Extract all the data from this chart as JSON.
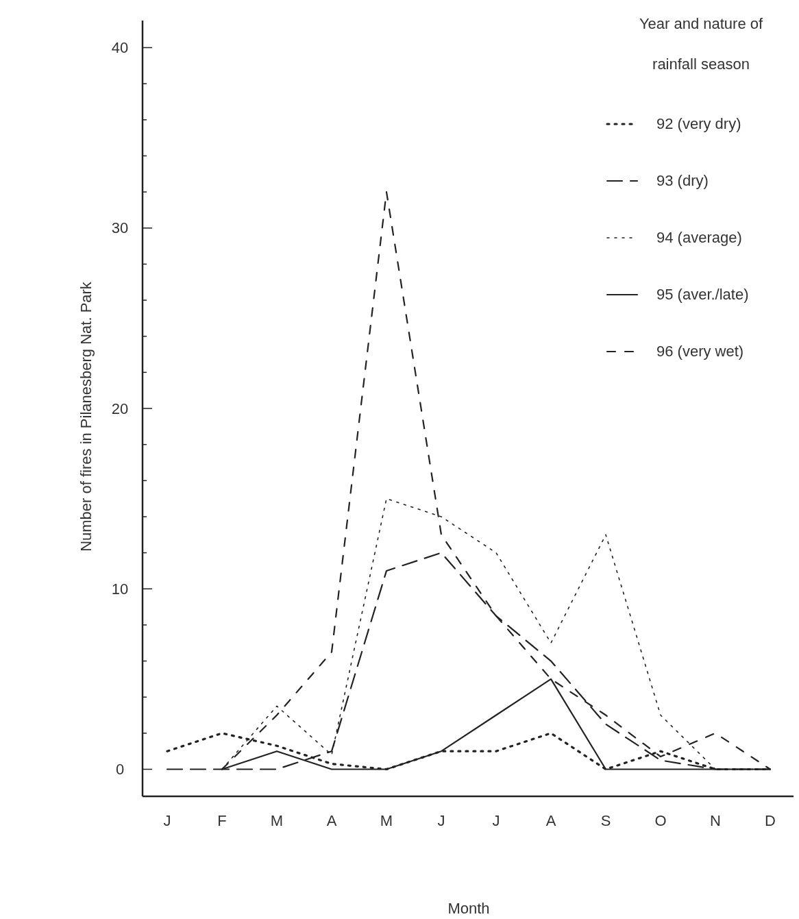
{
  "chart_data": {
    "type": "line",
    "xlabel": "Month",
    "ylabel": "Number of fires in Pilanesberg Nat. Park",
    "legend_title": "Year and nature of rainfall season",
    "legend": "top right",
    "categories": [
      "J",
      "F",
      "M",
      "A",
      "M",
      "J",
      "J",
      "A",
      "S",
      "O",
      "N",
      "D"
    ],
    "ylim": [
      -1.5,
      41.5
    ],
    "yticks": [
      0,
      {
        "value": 2,
        "label": null
      },
      {
        "value": 4,
        "label": null
      },
      {
        "value": 6,
        "label": null
      },
      {
        "value": 8,
        "label": null
      },
      10,
      {
        "value": 12,
        "label": null
      },
      {
        "value": 14,
        "label": null
      },
      {
        "value": 16,
        "label": null
      },
      {
        "value": 18,
        "label": null
      },
      20,
      {
        "value": 22,
        "label": null
      },
      {
        "value": 24,
        "label": null
      },
      {
        "value": 26,
        "label": null
      },
      {
        "value": 28,
        "label": null
      },
      30,
      {
        "value": 32,
        "label": null
      },
      {
        "value": 34,
        "label": null
      },
      {
        "value": 36,
        "label": null
      },
      {
        "value": 38,
        "label": null
      },
      40
    ],
    "series": [
      {
        "name": "92 (very dry)",
        "color": "#222222",
        "line_style": "dotted",
        "values": [
          1,
          2,
          1.3,
          0.3,
          0,
          1,
          1,
          2,
          0,
          1,
          0,
          0
        ]
      },
      {
        "name": "93 (dry)",
        "color": "#222222",
        "line_style": "dashed",
        "values": [
          0,
          0,
          0,
          1,
          11,
          12,
          8.5,
          6,
          2.5,
          0.5,
          0,
          0
        ]
      },
      {
        "name": "94 (average)",
        "color": "#222222",
        "line_style": "dotted",
        "values": [
          null,
          0,
          3.5,
          0.8,
          15,
          14,
          12,
          7,
          13,
          3,
          0,
          0
        ]
      },
      {
        "name": "95 (aver./late)",
        "color": "#222222",
        "line_style": "solid",
        "values": [
          null,
          0,
          1,
          0,
          0,
          1,
          3,
          5,
          0,
          0,
          0,
          0
        ]
      },
      {
        "name": "96 (very wet)",
        "color": "#222222",
        "line_style": "dashed",
        "values": [
          null,
          0,
          3,
          6.5,
          32,
          13,
          8.5,
          5,
          3,
          0.7,
          2,
          0
        ]
      }
    ]
  }
}
